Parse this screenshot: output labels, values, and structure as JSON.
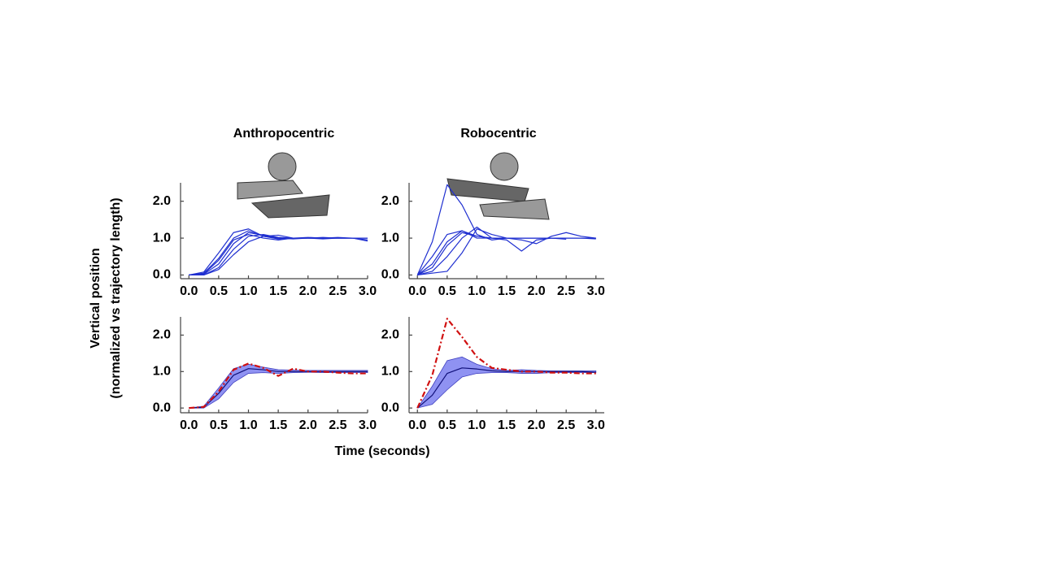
{
  "ylabel": [
    "Vertical position",
    "(normalized vs trajectory length)"
  ],
  "xlabel": "Time (seconds)",
  "chart_data": [
    {
      "type": "line",
      "title": "Anthropocentric",
      "x": [
        0,
        0.25,
        0.5,
        0.75,
        1.0,
        1.25,
        1.5,
        1.75,
        2.0,
        2.25,
        2.5,
        2.75,
        3.0
      ],
      "xlim": [
        -0.14,
        3.0
      ],
      "ylim": [
        -0.1,
        2.5
      ],
      "xticks": [
        {
          "value": 0,
          "label": "0.0"
        },
        {
          "value": 0.5,
          "label": "0.5"
        },
        {
          "value": 1,
          "label": "1.0"
        },
        {
          "value": 1.5,
          "label": "1.5"
        },
        {
          "value": 2,
          "label": "2.0"
        },
        {
          "value": 2.5,
          "label": "2.5"
        },
        {
          "value": 3,
          "label": "3.0"
        }
      ],
      "yticks": [
        {
          "value": 0,
          "label": "0.0"
        },
        {
          "value": 1,
          "label": "1.0"
        },
        {
          "value": 2,
          "label": "2.0"
        }
      ],
      "series": [
        {
          "color": "#1f2fd0",
          "values": [
            0,
            0.05,
            0.45,
            1.0,
            1.2,
            1.05,
            1.0,
            1.0,
            1.0,
            1.0,
            1.0,
            1.0,
            1.0
          ]
        },
        {
          "color": "#1f2fd0",
          "values": [
            0,
            0.02,
            0.3,
            0.85,
            1.15,
            1.08,
            1.0,
            0.98,
            1.0,
            1.02,
            1.0,
            1.0,
            1.0
          ]
        },
        {
          "color": "#1f2fd0",
          "values": [
            0,
            0,
            0.2,
            0.7,
            1.05,
            1.1,
            1.02,
            1.0,
            1.0,
            1.0,
            1.0,
            1.0,
            0.95
          ]
        },
        {
          "color": "#1f2fd0",
          "values": [
            0,
            0.08,
            0.6,
            1.15,
            1.25,
            1.05,
            0.98,
            1.0,
            1.02,
            1.0,
            1.0,
            1.0,
            1.0
          ]
        },
        {
          "color": "#1f2fd0",
          "values": [
            0,
            0,
            0.15,
            0.55,
            0.9,
            1.05,
            1.08,
            1.0,
            1.0,
            0.98,
            1.0,
            1.0,
            1.0
          ]
        },
        {
          "color": "#1f2fd0",
          "values": [
            0,
            0.03,
            0.4,
            0.95,
            1.1,
            1.0,
            0.95,
            1.0,
            1.0,
            1.0,
            1.02,
            1.0,
            0.92
          ]
        }
      ]
    },
    {
      "type": "line",
      "title": "Robocentric",
      "x": [
        0,
        0.25,
        0.5,
        0.75,
        1.0,
        1.25,
        1.5,
        1.75,
        2.0,
        2.25,
        2.5,
        2.75,
        3.0
      ],
      "xlim": [
        -0.14,
        3.14
      ],
      "ylim": [
        -0.1,
        2.5
      ],
      "xticks": [
        {
          "value": 0,
          "label": "0.0"
        },
        {
          "value": 0.5,
          "label": "0.5"
        },
        {
          "value": 1,
          "label": "1.0"
        },
        {
          "value": 1.5,
          "label": "1.5"
        },
        {
          "value": 2,
          "label": "2.0"
        },
        {
          "value": 2.5,
          "label": "2.5"
        },
        {
          "value": 3,
          "label": "3.0"
        }
      ],
      "yticks": [
        {
          "value": 0,
          "label": "0.0"
        },
        {
          "value": 1,
          "label": "1.0"
        },
        {
          "value": 2,
          "label": "2.0"
        }
      ],
      "series": [
        {
          "color": "#1f2fd0",
          "values": [
            0,
            0.9,
            2.45,
            1.9,
            1.1,
            0.95,
            1.0,
            1.0,
            1.0,
            1.0,
            1.0,
            1.0,
            1.0
          ]
        },
        {
          "color": "#1f2fd0",
          "values": [
            0,
            0.3,
            0.9,
            1.2,
            1.05,
            1.0,
            1.0,
            0.95,
            0.85,
            1.05,
            1.15,
            1.05,
            1.0
          ]
        },
        {
          "color": "#1f2fd0",
          "values": [
            0,
            0.1,
            0.5,
            1.0,
            1.3,
            1.0,
            0.95,
            0.65,
            0.95,
            1.0,
            1.0,
            1.0,
            0.98
          ]
        },
        {
          "color": "#1f2fd0",
          "values": [
            0,
            0.5,
            1.1,
            1.2,
            1.0,
            1.0,
            1.0,
            1.0,
            1.0,
            1.0,
            1.0,
            null,
            null
          ]
        },
        {
          "color": "#1f2fd0",
          "values": [
            0,
            0.2,
            0.8,
            1.15,
            1.05,
            1.0,
            1.0,
            1.0,
            1.0,
            1.0,
            0.97,
            null,
            null
          ]
        },
        {
          "color": "#1f2fd0",
          "values": [
            0,
            0.05,
            0.1,
            0.6,
            1.25,
            1.1,
            1.0,
            1.0,
            1.0,
            1.0,
            1.0,
            1.0,
            1.0
          ]
        }
      ]
    },
    {
      "type": "line",
      "x": [
        0,
        0.25,
        0.5,
        0.75,
        1.0,
        1.25,
        1.5,
        1.75,
        2.0,
        2.25,
        2.5,
        2.75,
        3.0
      ],
      "xlim": [
        -0.14,
        3.0
      ],
      "ylim": [
        -0.13,
        2.5
      ],
      "xticks": [
        {
          "value": 0,
          "label": "0.0"
        },
        {
          "value": 0.5,
          "label": "0.5"
        },
        {
          "value": 1,
          "label": "1.0"
        },
        {
          "value": 1.5,
          "label": "1.5"
        },
        {
          "value": 2,
          "label": "2.0"
        },
        {
          "value": 2.5,
          "label": "2.5"
        },
        {
          "value": 3,
          "label": "3.0"
        }
      ],
      "yticks": [
        {
          "value": 0,
          "label": "0.0"
        },
        {
          "value": 1,
          "label": "1.0"
        },
        {
          "value": 2,
          "label": "2.0"
        }
      ],
      "band": {
        "color": "#7b7ff0",
        "lower": [
          0,
          0,
          0.25,
          0.7,
          0.95,
          0.97,
          0.95,
          0.97,
          0.98,
          0.97,
          0.97,
          0.97,
          0.97
        ],
        "upper": [
          0,
          0.05,
          0.55,
          1.08,
          1.2,
          1.12,
          1.05,
          1.04,
          1.03,
          1.03,
          1.03,
          1.03,
          1.03
        ]
      },
      "series": [
        {
          "color": "#10107a",
          "values": [
            0,
            0.02,
            0.4,
            0.9,
            1.08,
            1.05,
            1.0,
            1.0,
            1.0,
            1.0,
            1.0,
            1.0,
            1.0
          ]
        },
        {
          "color": "#d01010",
          "dash": "7 3 2 3",
          "values": [
            0,
            0.03,
            0.45,
            1.05,
            1.22,
            1.1,
            0.88,
            1.08,
            1.0,
            1.0,
            0.97,
            0.95,
            0.95
          ]
        }
      ]
    },
    {
      "type": "line",
      "x": [
        0,
        0.25,
        0.5,
        0.75,
        1.0,
        1.25,
        1.5,
        1.75,
        2.0,
        2.25,
        2.5,
        2.75,
        3.0
      ],
      "xlim": [
        -0.14,
        3.14
      ],
      "ylim": [
        -0.13,
        2.5
      ],
      "xticks": [
        {
          "value": 0,
          "label": "0.0"
        },
        {
          "value": 0.5,
          "label": "0.5"
        },
        {
          "value": 1,
          "label": "1.0"
        },
        {
          "value": 1.5,
          "label": "1.5"
        },
        {
          "value": 2,
          "label": "2.0"
        },
        {
          "value": 2.5,
          "label": "2.5"
        },
        {
          "value": 3,
          "label": "3.0"
        }
      ],
      "yticks": [
        {
          "value": 0,
          "label": "0.0"
        },
        {
          "value": 1,
          "label": "1.0"
        },
        {
          "value": 2,
          "label": "2.0"
        }
      ],
      "band": {
        "color": "#7b7ff0",
        "lower": [
          0,
          0.1,
          0.5,
          0.85,
          0.95,
          0.97,
          0.97,
          0.95,
          0.95,
          0.97,
          0.97,
          0.97,
          0.97
        ],
        "upper": [
          0,
          0.6,
          1.3,
          1.4,
          1.2,
          1.08,
          1.03,
          1.05,
          1.03,
          1.02,
          1.02,
          1.02,
          1.02
        ]
      },
      "series": [
        {
          "color": "#10107a",
          "values": [
            0,
            0.35,
            0.95,
            1.1,
            1.07,
            1.02,
            1.0,
            1.0,
            1.0,
            1.0,
            1.0,
            1.0,
            0.98
          ]
        },
        {
          "color": "#d01010",
          "dash": "7 3 2 3",
          "values": [
            0,
            0.9,
            2.45,
            1.95,
            1.4,
            1.1,
            1.05,
            1.0,
            1.0,
            0.97,
            0.97,
            0.95,
            0.95
          ]
        }
      ]
    }
  ]
}
